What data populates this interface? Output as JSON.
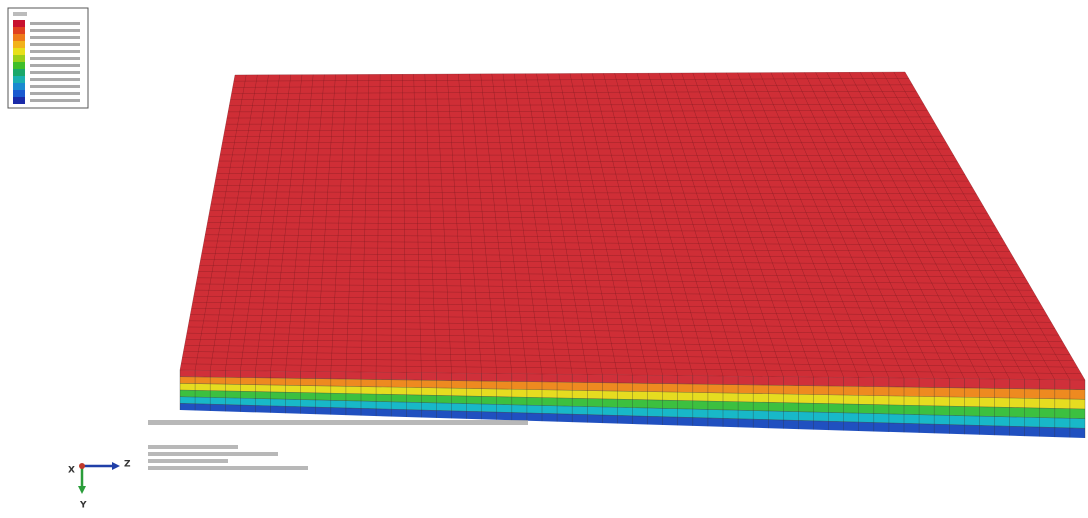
{
  "triad": {
    "z_label": "Z",
    "y_label": "Y",
    "x_label": "X"
  }
}
